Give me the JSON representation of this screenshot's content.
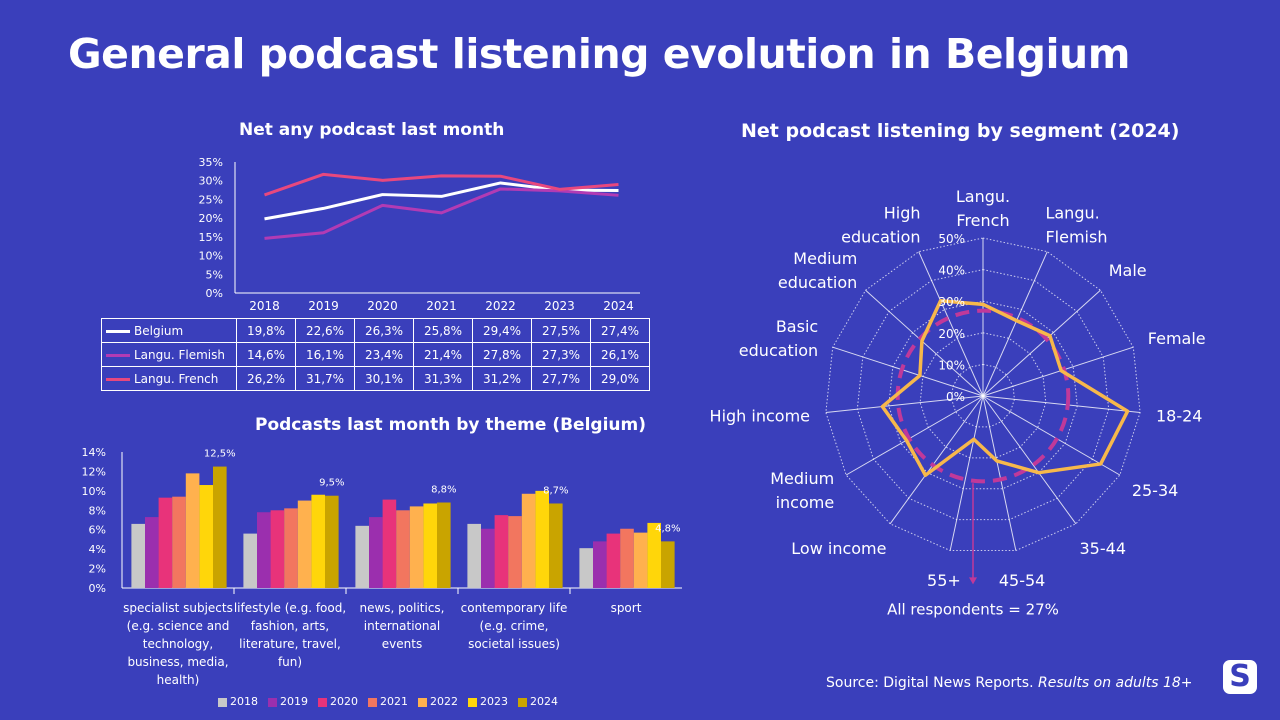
{
  "page": {
    "title": "General podcast listening evolution in Belgium",
    "source_text": "Source: Digital News Reports.",
    "source_italic": "Results on adults 18+",
    "logo": "S"
  },
  "colors": {
    "background": "#3a3fbb",
    "belgium": "#ffffff",
    "flemish": "#b23bb4",
    "french": "#e8487e",
    "bar_years": [
      "#c8c8c8",
      "#9b2fae",
      "#e8337a",
      "#f2765f",
      "#ffb14e",
      "#ffd60a",
      "#c9a400"
    ],
    "radar_line": "#f7b84b",
    "radar_avg": "#c0399a"
  },
  "chart_data": [
    {
      "type": "line",
      "title": "Net any podcast last month",
      "x": [
        "2018",
        "2019",
        "2020",
        "2021",
        "2022",
        "2023",
        "2024"
      ],
      "ytick_labels": [
        "35%",
        "30%",
        "25%",
        "20%",
        "15%",
        "10%",
        "5%",
        "0%"
      ],
      "ylim": [
        0,
        35
      ],
      "series": [
        {
          "name": "Belgium",
          "values": [
            19.8,
            22.6,
            26.3,
            25.8,
            29.4,
            27.5,
            27.4
          ],
          "labels": [
            "19,8%",
            "22,6%",
            "26,3%",
            "25,8%",
            "29,4%",
            "27,5%",
            "27,4%"
          ]
        },
        {
          "name": "Langu. Flemish",
          "values": [
            14.6,
            16.1,
            23.4,
            21.4,
            27.8,
            27.3,
            26.1
          ],
          "labels": [
            "14,6%",
            "16,1%",
            "23,4%",
            "21,4%",
            "27,8%",
            "27,3%",
            "26,1%"
          ]
        },
        {
          "name": "Langu. French",
          "values": [
            26.2,
            31.7,
            30.1,
            31.3,
            31.2,
            27.7,
            29.0
          ],
          "labels": [
            "26,2%",
            "31,7%",
            "30,1%",
            "31,3%",
            "31,2%",
            "27,7%",
            "29,0%"
          ]
        }
      ]
    },
    {
      "type": "bar",
      "title": "Podcasts last month by theme (Belgium)",
      "categories": [
        "specialist subjects (e.g. science and technology, business, media, health)",
        "lifestyle (e.g. food, fashion, arts, literature, travel, fun)",
        "news, politics, international events",
        "contemporary life (e.g. crime, societal issues)",
        "sport"
      ],
      "category_lines": [
        [
          "specialist subjects",
          "(e.g. science and",
          "technology,",
          "business, media,",
          "health)"
        ],
        [
          "lifestyle (e.g. food,",
          "fashion, arts,",
          "literature, travel,",
          "fun)"
        ],
        [
          "news, politics,",
          "international",
          "events"
        ],
        [
          "contemporary life",
          "(e.g. crime,",
          "societal issues)"
        ],
        [
          "sport"
        ]
      ],
      "ytick_labels": [
        "14%",
        "12%",
        "10%",
        "8%",
        "6%",
        "4%",
        "2%",
        "0%"
      ],
      "ylim": [
        0,
        14
      ],
      "series": [
        {
          "name": "2018",
          "values": [
            6.6,
            5.6,
            6.4,
            6.6,
            4.1
          ]
        },
        {
          "name": "2019",
          "values": [
            7.3,
            7.8,
            7.3,
            6.1,
            4.8
          ]
        },
        {
          "name": "2020",
          "values": [
            9.3,
            8.0,
            9.1,
            7.5,
            5.6
          ]
        },
        {
          "name": "2021",
          "values": [
            9.4,
            8.2,
            8.0,
            7.4,
            6.1
          ]
        },
        {
          "name": "2022",
          "values": [
            11.8,
            9.0,
            8.4,
            9.7,
            5.7
          ]
        },
        {
          "name": "2023",
          "values": [
            10.6,
            9.6,
            8.7,
            10.0,
            6.7
          ]
        },
        {
          "name": "2024",
          "values": [
            12.5,
            9.5,
            8.8,
            8.7,
            4.8
          ]
        }
      ],
      "data_labels": [
        "12,5%",
        "9,5%",
        "8,8%",
        "8,7%",
        "4,8%"
      ]
    },
    {
      "type": "radar",
      "title": "Net podcast listening by segment (2024)",
      "categories": [
        [
          "Langu.",
          "French"
        ],
        [
          "Langu.",
          "Flemish"
        ],
        [
          "Male"
        ],
        [
          "Female"
        ],
        [
          "18-24"
        ],
        [
          "25-34"
        ],
        [
          "35-44"
        ],
        [
          "45-54"
        ],
        [
          "55+"
        ],
        [
          "Low income"
        ],
        [
          "Medium",
          "income"
        ],
        [
          "High income"
        ],
        [
          "Basic",
          "education"
        ],
        [
          "Medium",
          "education"
        ],
        [
          "High",
          "education"
        ]
      ],
      "rtick_labels": [
        "0%",
        "10%",
        "20%",
        "30%",
        "40%",
        "50%"
      ],
      "rlim": [
        0,
        50
      ],
      "values": [
        29.0,
        26.1,
        28.5,
        26.0,
        46.0,
        43.0,
        30.0,
        21.0,
        14.0,
        31.0,
        28.0,
        32.0,
        21.0,
        26.0,
        33.0
      ],
      "average": 27,
      "average_label": "All respondents = 27%"
    }
  ]
}
